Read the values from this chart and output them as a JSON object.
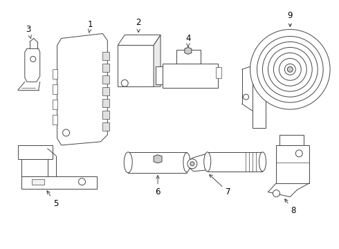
{
  "background_color": "#ffffff",
  "line_color": "#444444",
  "label_color": "#000000",
  "figsize": [
    4.9,
    3.6
  ],
  "dpi": 100,
  "lw": 0.7
}
